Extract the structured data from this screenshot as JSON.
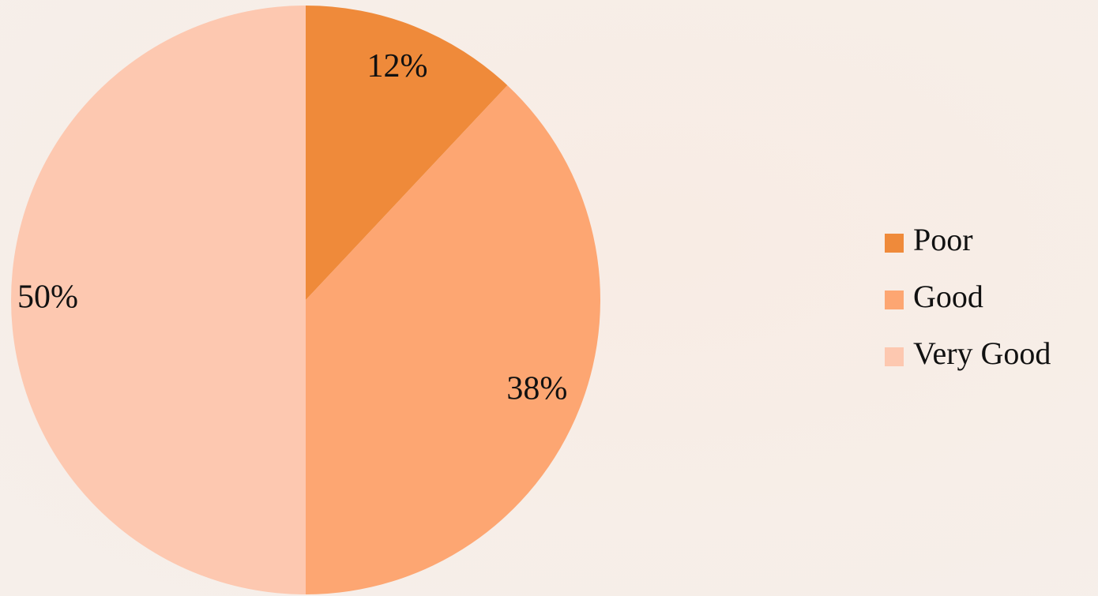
{
  "chart_data": {
    "type": "pie",
    "categories": [
      "Poor",
      "Good",
      "Very Good"
    ],
    "values": [
      12,
      38,
      50
    ],
    "value_labels": [
      "12%",
      "38%",
      "50%"
    ],
    "colors": [
      "#ef8a3a",
      "#fda672",
      "#fdc8b0"
    ],
    "legend": "right"
  }
}
